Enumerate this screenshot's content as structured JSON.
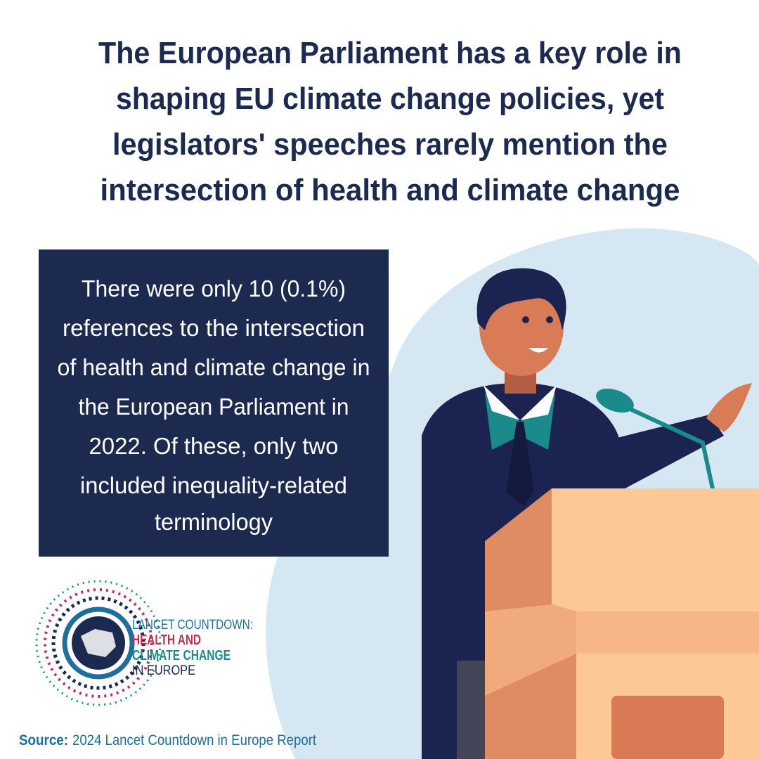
{
  "headline": {
    "lines": [
      "The European Parliament has a key role in",
      "shaping EU climate change policies, yet",
      "legislators' speeches rarely mention the",
      "intersection of health and climate change"
    ]
  },
  "callout": {
    "lines": [
      "There were only 10 (0.1%)",
      "references to the intersection",
      "of health and climate change in",
      "the European Parliament in",
      "2022. Of these, only two",
      "included inequality-related",
      "terminology"
    ]
  },
  "logo": {
    "line1": "LANCET COUNTDOWN:",
    "line2": "HEALTH AND",
    "line3": "CLIMATE CHANGE",
    "line4": "IN EUROPE"
  },
  "source": {
    "label": "Source:",
    "text": "2024 Lancet Countdown in Europe Report"
  }
}
